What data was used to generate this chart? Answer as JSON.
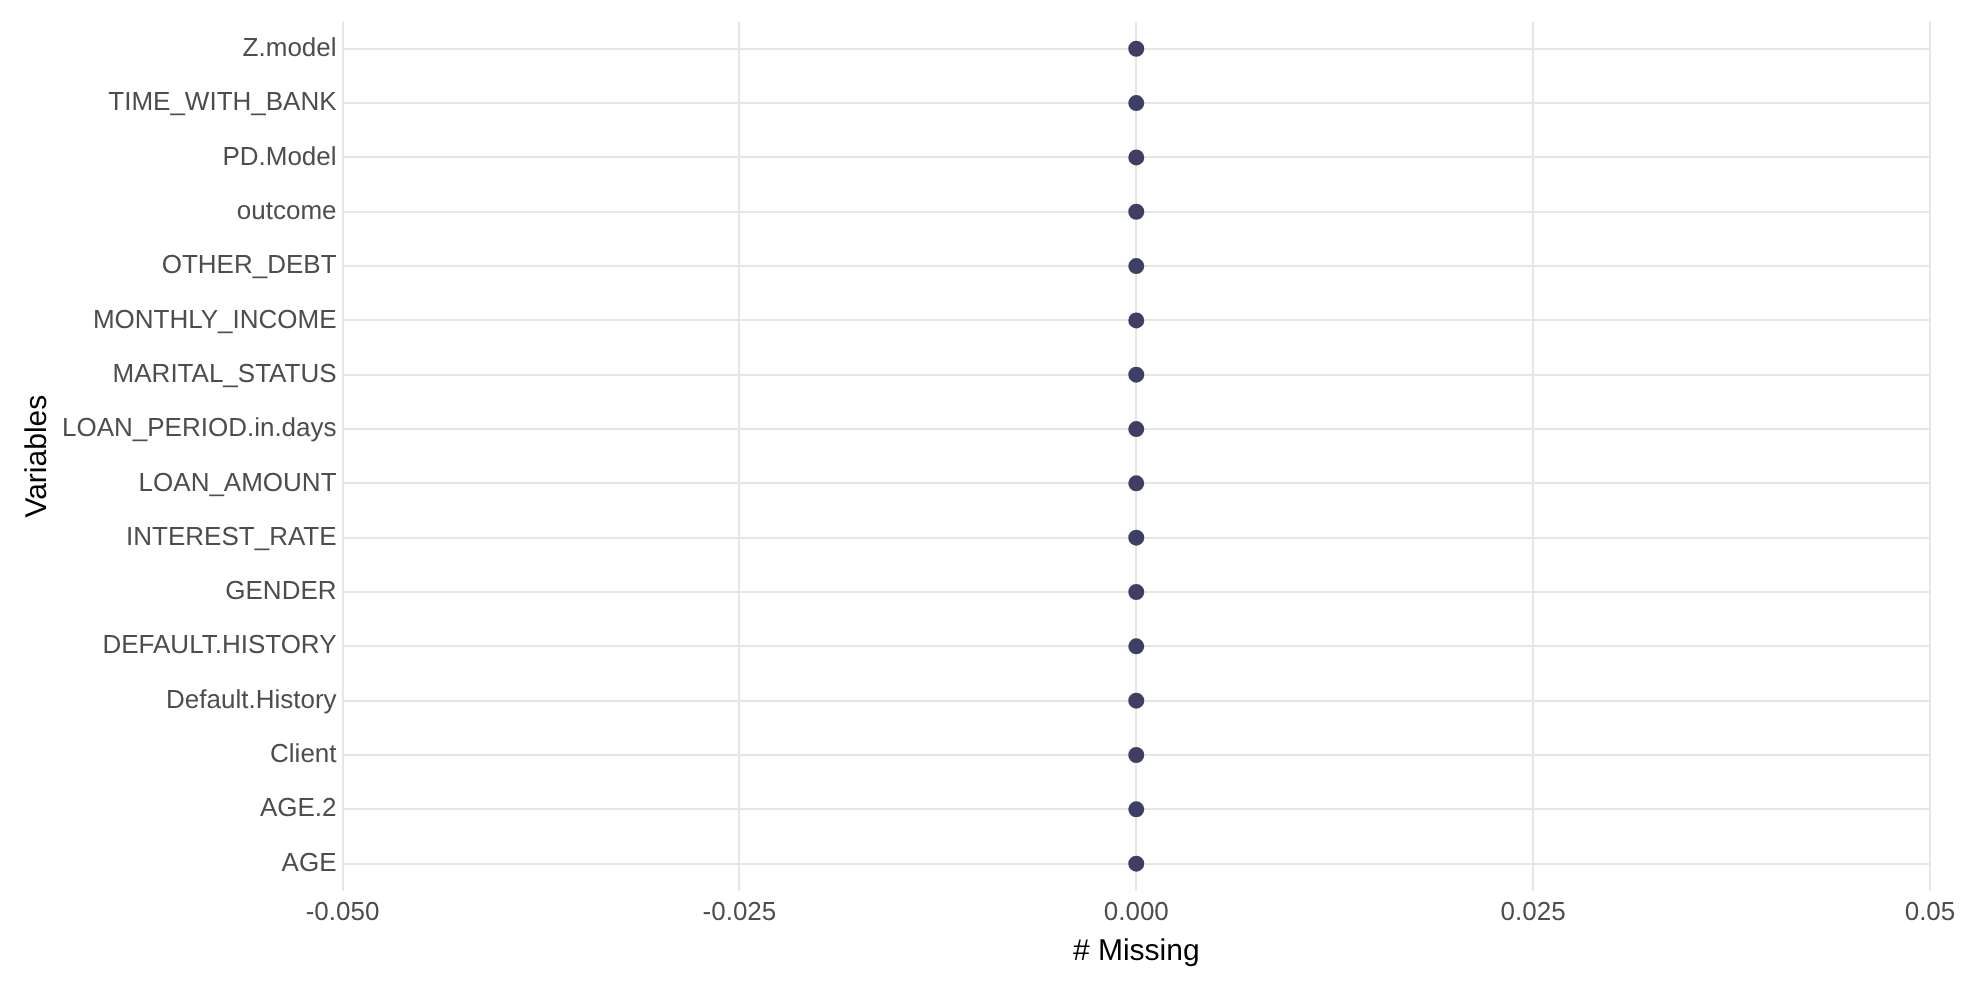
{
  "chart_data": {
    "type": "lollipop",
    "orientation": "horizontal",
    "xlabel": "# Missing",
    "ylabel": "Variables",
    "categories": [
      "Z.model",
      "TIME_WITH_BANK",
      "PD.Model",
      "outcome",
      "OTHER_DEBT",
      "MONTHLY_INCOME",
      "MARITAL_STATUS",
      "LOAN_PERIOD.in.days",
      "LOAN_AMOUNT",
      "INTEREST_RATE",
      "GENDER",
      "DEFAULT.HISTORY",
      "Default.History",
      "Client",
      "AGE.2",
      "AGE"
    ],
    "values": [
      0,
      0,
      0,
      0,
      0,
      0,
      0,
      0,
      0,
      0,
      0,
      0,
      0,
      0,
      0,
      0
    ],
    "color": "#3f3f63",
    "marker": "circle",
    "grid": true,
    "legend": false,
    "xlim": [
      -0.05,
      0.05
    ],
    "xticks": [
      {
        "value": -0.05,
        "label": "-0.050"
      },
      {
        "value": -0.025,
        "label": "-0.025"
      },
      {
        "value": 0,
        "label": "0.000"
      },
      {
        "value": 0.025,
        "label": "0.025"
      },
      {
        "value": 0.05,
        "label": "0.05"
      }
    ]
  }
}
